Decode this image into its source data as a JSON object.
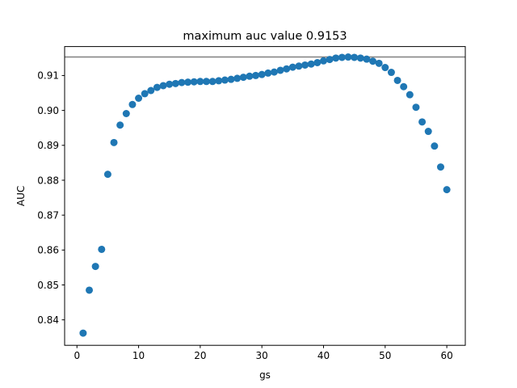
{
  "chart_data": {
    "type": "scatter",
    "title": "maximum auc value 0.9153",
    "xlabel": "gs",
    "ylabel": "AUC",
    "xlim": [
      -2.0,
      63.0
    ],
    "ylim": [
      0.8327,
      0.9183
    ],
    "xticks": [
      0,
      10,
      20,
      30,
      40,
      50,
      60
    ],
    "xtick_labels": [
      "0",
      "10",
      "20",
      "30",
      "40",
      "50",
      "60"
    ],
    "yticks": [
      0.84,
      0.85,
      0.86,
      0.87,
      0.88,
      0.89,
      0.9,
      0.91
    ],
    "ytick_labels": [
      "0.84",
      "0.85",
      "0.86",
      "0.87",
      "0.88",
      "0.89",
      "0.90",
      "0.91"
    ],
    "grid": false,
    "hline": {
      "y": 0.9153,
      "color": "#808080"
    },
    "marker_color": "#1f77b4",
    "series": [
      {
        "x": [
          1,
          2,
          3,
          4,
          5,
          6,
          7,
          8,
          9,
          10,
          11,
          12,
          13,
          14,
          15,
          16,
          17,
          18,
          19,
          20,
          21,
          22,
          23,
          24,
          25,
          26,
          27,
          28,
          29,
          30,
          31,
          32,
          33,
          34,
          35,
          36,
          37,
          38,
          39,
          40,
          41,
          42,
          43,
          44,
          45,
          46,
          47,
          48,
          49,
          50,
          51,
          52,
          53,
          54,
          55,
          56,
          57,
          58,
          59,
          60
        ],
        "y": [
          0.8362,
          0.8485,
          0.8553,
          0.8602,
          0.8817,
          0.8908,
          0.8958,
          0.8991,
          0.9017,
          0.9035,
          0.9048,
          0.9057,
          0.9066,
          0.9071,
          0.9075,
          0.9077,
          0.908,
          0.9081,
          0.9082,
          0.9083,
          0.9083,
          0.9083,
          0.9085,
          0.9087,
          0.9089,
          0.9092,
          0.9095,
          0.9098,
          0.91,
          0.9103,
          0.9107,
          0.911,
          0.9115,
          0.9119,
          0.9124,
          0.9127,
          0.913,
          0.9133,
          0.9137,
          0.9142,
          0.9146,
          0.915,
          0.9152,
          0.9153,
          0.9152,
          0.915,
          0.9147,
          0.9141,
          0.9135,
          0.9123,
          0.9109,
          0.9086,
          0.9068,
          0.9045,
          0.9009,
          0.8967,
          0.894,
          0.8898,
          0.8838,
          0.8773
        ]
      }
    ]
  }
}
